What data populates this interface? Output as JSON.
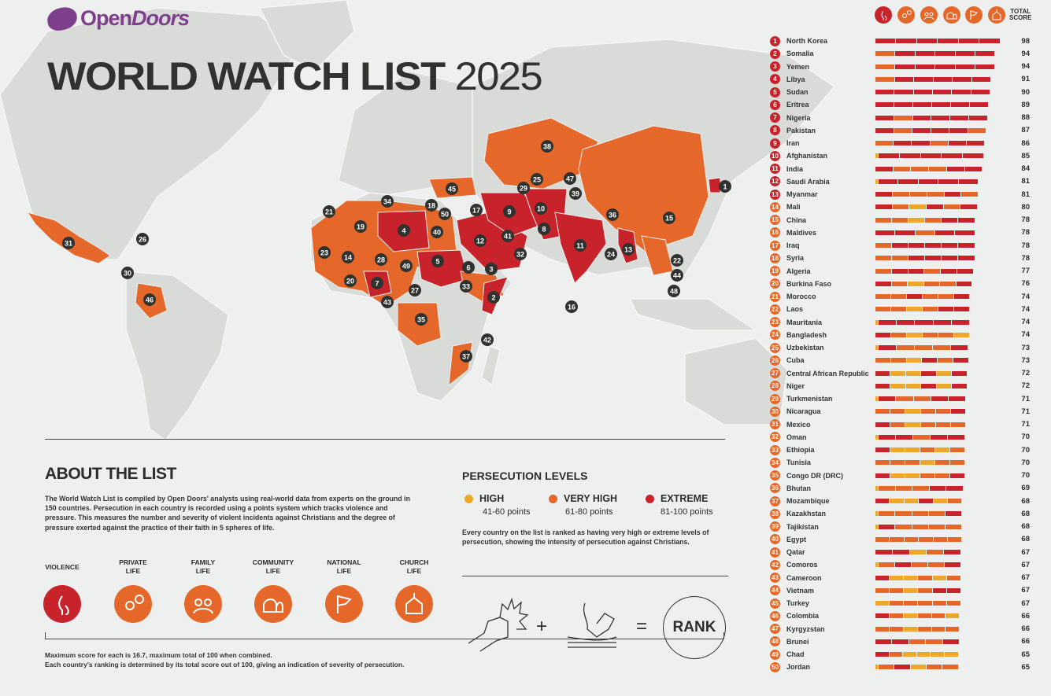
{
  "brand": {
    "name_a": "Open",
    "name_b": "Doors"
  },
  "title": {
    "main": "WORLD WATCH LIST",
    "year": "2025"
  },
  "colors": {
    "extreme": "#c8222b",
    "very_high": "#e5682a",
    "high": "#eea829",
    "brand": "#7d3f8c",
    "land": "#d9dbd9"
  },
  "list_header": {
    "total_label_1": "TOTAL",
    "total_label_2": "SCORE",
    "icons": [
      "violence-icon",
      "private-life-icon",
      "family-life-icon",
      "community-life-icon",
      "national-life-icon",
      "church-life-icon"
    ]
  },
  "countries": [
    {
      "rank": "1",
      "name": "North Korea",
      "score": "98",
      "segments": "EEEEEE"
    },
    {
      "rank": "2",
      "name": "Somalia",
      "score": "94",
      "segments": "VEEEEE"
    },
    {
      "rank": "3",
      "name": "Yemen",
      "score": "94",
      "segments": "VEEEEE"
    },
    {
      "rank": "4",
      "name": "Libya",
      "score": "91",
      "segments": "VEEEEE"
    },
    {
      "rank": "5",
      "name": "Sudan",
      "score": "90",
      "segments": "EEEEEE"
    },
    {
      "rank": "6",
      "name": "Eritrea",
      "score": "89",
      "segments": "EEEEEE"
    },
    {
      "rank": "7",
      "name": "Nigeria",
      "score": "88",
      "segments": "EVEEEE"
    },
    {
      "rank": "8",
      "name": "Pakistan",
      "score": "87",
      "segments": "EVEEEV"
    },
    {
      "rank": "9",
      "name": "Iran",
      "score": "86",
      "segments": "VEEVEE"
    },
    {
      "rank": "10",
      "name": "Afghanistan",
      "score": "85",
      "segments": "LEEEEE"
    },
    {
      "rank": "11",
      "name": "India",
      "score": "84",
      "segments": "EVVVEE"
    },
    {
      "rank": "12",
      "name": "Saudi Arabia",
      "score": "81",
      "segments": "LEEEEE"
    },
    {
      "rank": "13",
      "name": "Myanmar",
      "score": "81",
      "segments": "EVVVEV"
    },
    {
      "rank": "14",
      "name": "Mali",
      "score": "80",
      "segments": "EVHEVE"
    },
    {
      "rank": "15",
      "name": "China",
      "score": "78",
      "segments": "VVHVEE"
    },
    {
      "rank": "16",
      "name": "Maldives",
      "score": "78",
      "segments": "NEEVEE"
    },
    {
      "rank": "17",
      "name": "Iraq",
      "score": "78",
      "segments": "VEEEEE"
    },
    {
      "rank": "18",
      "name": "Syria",
      "score": "78",
      "segments": "VVEEEE"
    },
    {
      "rank": "19",
      "name": "Algeria",
      "score": "77",
      "segments": "VEEVEE"
    },
    {
      "rank": "20",
      "name": "Burkina Faso",
      "score": "76",
      "segments": "EVHVVE"
    },
    {
      "rank": "21",
      "name": "Morocco",
      "score": "74",
      "segments": "VVEVVE"
    },
    {
      "rank": "22",
      "name": "Laos",
      "score": "74",
      "segments": "VVHVEE"
    },
    {
      "rank": "23",
      "name": "Mauritania",
      "score": "74",
      "segments": "LEEEEE"
    },
    {
      "rank": "24",
      "name": "Bangladesh",
      "score": "74",
      "segments": "EVHVVH"
    },
    {
      "rank": "25",
      "name": "Uzbekistan",
      "score": "73",
      "segments": "LEVVVE"
    },
    {
      "rank": "26",
      "name": "Cuba",
      "score": "73",
      "segments": "VVHEVE"
    },
    {
      "rank": "27",
      "name": "Central African Republic",
      "score": "72",
      "segments": "EHHEHE"
    },
    {
      "rank": "28",
      "name": "Niger",
      "score": "72",
      "segments": "EHHEHE"
    },
    {
      "rank": "29",
      "name": "Turkmenistan",
      "score": "71",
      "segments": "LEVVEE"
    },
    {
      "rank": "30",
      "name": "Nicaragua",
      "score": "71",
      "segments": "VVHVVE"
    },
    {
      "rank": "31",
      "name": "Mexico",
      "score": "71",
      "segments": "EVHVVV"
    },
    {
      "rank": "32",
      "name": "Oman",
      "score": "70",
      "segments": "LEEVEE"
    },
    {
      "rank": "33",
      "name": "Ethiopia",
      "score": "70",
      "segments": "EHHVHV"
    },
    {
      "rank": "34",
      "name": "Tunisia",
      "score": "70",
      "segments": "VVVHVV"
    },
    {
      "rank": "35",
      "name": "Congo DR (DRC)",
      "score": "70",
      "segments": "EHHVVE"
    },
    {
      "rank": "36",
      "name": "Bhutan",
      "score": "69",
      "segments": "LVVVEE"
    },
    {
      "rank": "37",
      "name": "Mozambique",
      "score": "68",
      "segments": "EHHEHV"
    },
    {
      "rank": "38",
      "name": "Kazakhstan",
      "score": "68",
      "segments": "LVVVVE"
    },
    {
      "rank": "39",
      "name": "Tajikistan",
      "score": "68",
      "segments": "LEVVVV"
    },
    {
      "rank": "40",
      "name": "Egypt",
      "score": "68",
      "segments": "VVVVVV"
    },
    {
      "rank": "41",
      "name": "Qatar",
      "score": "67",
      "segments": "NEEHVE"
    },
    {
      "rank": "42",
      "name": "Comoros",
      "score": "67",
      "segments": "LVEVVE"
    },
    {
      "rank": "43",
      "name": "Cameroon",
      "score": "67",
      "segments": "EHHVHV"
    },
    {
      "rank": "44",
      "name": "Vietnam",
      "score": "67",
      "segments": "VVHVEE"
    },
    {
      "rank": "45",
      "name": "Turkey",
      "score": "67",
      "segments": "HVVVVV"
    },
    {
      "rank": "46",
      "name": "Colombia",
      "score": "66",
      "segments": "EVHVVH"
    },
    {
      "rank": "47",
      "name": "Kyrgyzstan",
      "score": "66",
      "segments": "VVHVVV"
    },
    {
      "rank": "48",
      "name": "Brunei",
      "score": "66",
      "segments": "NEEVVE"
    },
    {
      "rank": "49",
      "name": "Chad",
      "score": "65",
      "segments": "EVHHHH"
    },
    {
      "rank": "50",
      "name": "Jordan",
      "score": "65",
      "segments": "LVEHVV"
    }
  ],
  "about": {
    "heading": "ABOUT THE LIST",
    "text": "The World Watch List is compiled by Open Doors' analysts using real-world data from experts on the ground in 150 countries. Persecution in each country is recorded using a points system which tracks violence and pressure. This measures the number and severity of violent incidents against Christians and the degree of pressure exerted against the practice of their faith in 5 spheres of life.",
    "spheres": [
      {
        "l1": "VIOLENCE",
        "l2": "",
        "icon": "violence-icon"
      },
      {
        "l1": "PRIVATE",
        "l2": "LIFE",
        "icon": "private-life-icon"
      },
      {
        "l1": "FAMILY",
        "l2": "LIFE",
        "icon": "family-life-icon"
      },
      {
        "l1": "COMMUNITY",
        "l2": "LIFE",
        "icon": "community-life-icon"
      },
      {
        "l1": "NATIONAL",
        "l2": "LIFE",
        "icon": "national-life-icon"
      },
      {
        "l1": "CHURCH",
        "l2": "LIFE",
        "icon": "church-life-icon"
      }
    ],
    "note_1": "Maximum score for each is 16.7, maximum total of 100 when combined.",
    "note_2": "Each country's ranking is determined by its total score out of 100, giving an indication of severity of persecution."
  },
  "levels": {
    "heading": "PERSECUTION LEVELS",
    "items": [
      {
        "label": "HIGH",
        "range": "41-60 points"
      },
      {
        "label": "VERY HIGH",
        "range": "61-80 points"
      },
      {
        "label": "EXTREME",
        "range": "81-100 points"
      }
    ],
    "text": "Every country on the list is ranked as having very high or extreme levels of persecution, showing the intensity of persecution against Christians.",
    "equation": {
      "plus": "+",
      "equals": "=",
      "result": "RANK"
    }
  }
}
